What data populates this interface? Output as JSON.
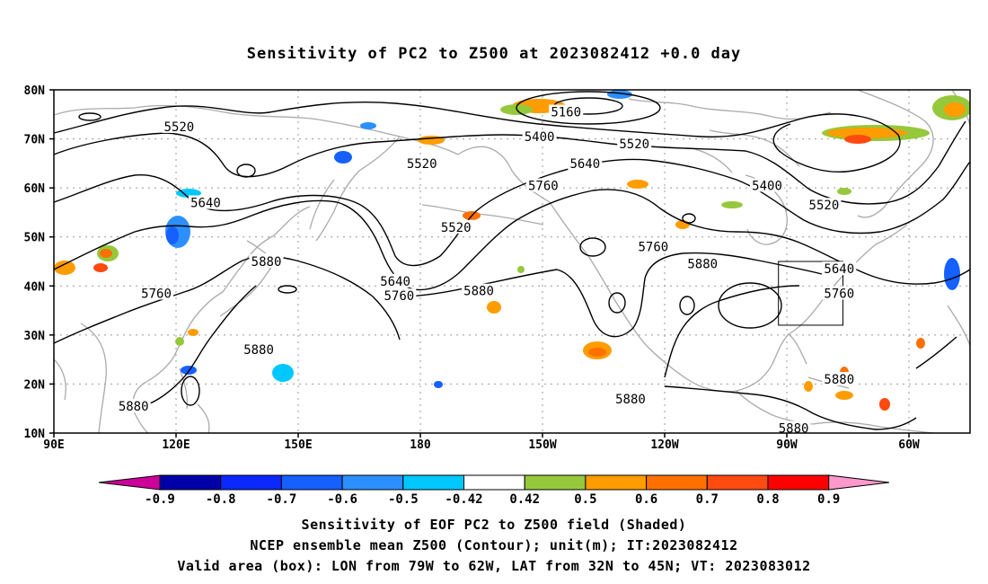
{
  "title": "Sensitivity of PC2 to Z500 at 2023082412 +0.0 day",
  "lat_labels": [
    "80N",
    "70N",
    "60N",
    "50N",
    "40N",
    "30N",
    "20N",
    "10N"
  ],
  "lon_labels": [
    "90E",
    "120E",
    "150E",
    "180",
    "150W",
    "120W",
    "90W",
    "60W"
  ],
  "contour_labels": [
    {
      "text": "5520",
      "lon": 123,
      "lat": 72.5
    },
    {
      "text": "5160",
      "lon": -135,
      "lat": 75.5
    },
    {
      "text": "5400",
      "lon": -142,
      "lat": 70.5
    },
    {
      "text": "5520",
      "lon": -117,
      "lat": 69
    },
    {
      "text": "5520",
      "lon": -173,
      "lat": 65
    },
    {
      "text": "5640",
      "lon": -130,
      "lat": 65
    },
    {
      "text": "5400",
      "lon": -82,
      "lat": 60.5
    },
    {
      "text": "5520",
      "lon": -67,
      "lat": 56.5
    },
    {
      "text": "5760",
      "lon": -141,
      "lat": 60.5
    },
    {
      "text": "5640",
      "lon": 130,
      "lat": 57
    },
    {
      "text": "5520",
      "lon": -164,
      "lat": 52
    },
    {
      "text": "5760",
      "lon": -112,
      "lat": 48
    },
    {
      "text": "5880",
      "lon": -99,
      "lat": 44.5
    },
    {
      "text": "5640",
      "lon": -63,
      "lat": 43.5
    },
    {
      "text": "5880",
      "lon": 146,
      "lat": 45
    },
    {
      "text": "5640",
      "lon": -180,
      "lat": 41
    },
    {
      "text": "5760",
      "lon": -179,
      "lat": 38
    },
    {
      "text": "5760",
      "lon": -63,
      "lat": 38.5
    },
    {
      "text": "5880",
      "lon": -158,
      "lat": 39
    },
    {
      "text": "5760",
      "lon": 117,
      "lat": 38.5
    },
    {
      "text": "5880",
      "lon": 144,
      "lat": 27
    },
    {
      "text": "5880",
      "lon": -118,
      "lat": 17
    },
    {
      "text": "5880",
      "lon": -63,
      "lat": 21
    },
    {
      "text": "5880",
      "lon": 111,
      "lat": 15.5
    },
    {
      "text": "5880",
      "lon": -75,
      "lat": 11
    }
  ],
  "valid_box": {
    "lon_west": -79,
    "lon_east": -62,
    "lat_south": 32,
    "lat_north": 45
  },
  "colorbar": {
    "labels": [
      "-0.9",
      "-0.8",
      "-0.7",
      "-0.6",
      "-0.5",
      "-0.42",
      "0.42",
      "0.5",
      "0.6",
      "0.7",
      "0.8",
      "0.9"
    ],
    "colors": [
      "#0000a8",
      "#0a28ff",
      "#1560ff",
      "#2c8fff",
      "#00c8ff",
      "#ffffff",
      "#96c83c",
      "#ff9c00",
      "#ff7000",
      "#ff4a10",
      "#ff0000"
    ],
    "low_end": "#cc0099",
    "high_end": "#ff99cc"
  },
  "footer": {
    "line1": "Sensitivity of EOF PC2 to Z500 field (Shaded)",
    "line2": "NCEP ensemble mean Z500 (Contour); unit(m); IT:2023082412",
    "line3": "Valid area (box): LON from 79W to 62W, LAT from 32N to 45N; VT: 2023083012"
  }
}
